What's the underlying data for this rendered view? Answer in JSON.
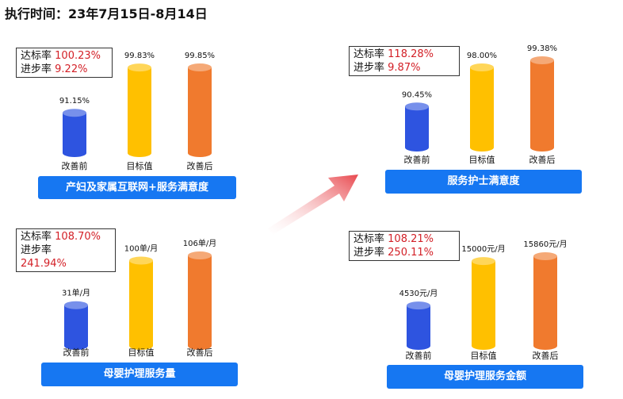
{
  "header": {
    "title": "执行时间：23年7月15日-8月14日"
  },
  "colors": {
    "before": "#2e54e0",
    "target": "#ffc000",
    "after": "#f07a2e",
    "banner": "#1677f2",
    "rate": "#d32027"
  },
  "chart_data": [
    {
      "type": "bar",
      "title": "产妇及家属互联网+服务满意度",
      "categories": [
        "改善前",
        "目标值",
        "改善后"
      ],
      "values": [
        91.15,
        99.83,
        99.85
      ],
      "value_labels": [
        "91.15%",
        "99.83%",
        "99.85%"
      ],
      "stats": {
        "rate_label": "达标率",
        "rate_value": "100.23%",
        "progress_label": "进步率",
        "progress_value": "9.22%"
      }
    },
    {
      "type": "bar",
      "title": "服务护士满意度",
      "categories": [
        "改善前",
        "目标值",
        "改善后"
      ],
      "values": [
        90.45,
        98.0,
        99.38
      ],
      "value_labels": [
        "90.45%",
        "98.00%",
        "99.38%"
      ],
      "stats": {
        "rate_label": "达标率",
        "rate_value": "118.28%",
        "progress_label": "进步率",
        "progress_value": "9.87%"
      }
    },
    {
      "type": "bar",
      "title": "母婴护理服务量",
      "categories": [
        "改善前",
        "目标值",
        "改善后"
      ],
      "values": [
        31,
        100,
        106
      ],
      "value_labels": [
        "31单/月",
        "100单/月",
        "106单/月"
      ],
      "stats": {
        "rate_label": "达标率",
        "rate_value": "108.70%",
        "progress_label": "进步率",
        "progress_value": "241.94%"
      }
    },
    {
      "type": "bar",
      "title": "母婴护理服务金额",
      "categories": [
        "改善前",
        "目标值",
        "改善后"
      ],
      "values": [
        4530,
        15000,
        15860
      ],
      "value_labels": [
        "4530元/月",
        "15000元/月",
        "15860元/月"
      ],
      "stats": {
        "rate_label": "达标率",
        "rate_value": "108.21%",
        "progress_label": "进步率",
        "progress_value": "250.11%"
      }
    }
  ]
}
